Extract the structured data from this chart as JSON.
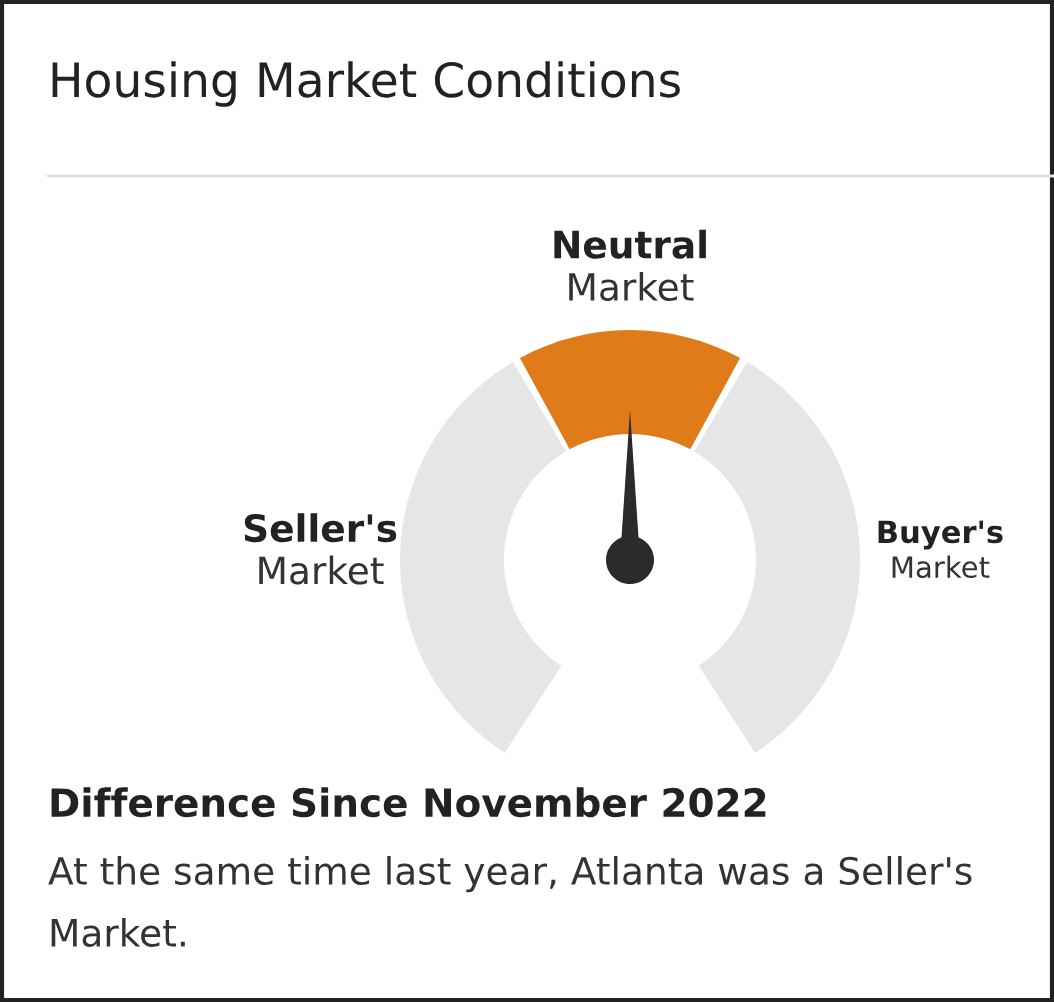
{
  "chart_data": {
    "type": "donut",
    "title": "Housing Market Conditions",
    "categories": [
      "Seller's Market",
      "Neutral Market",
      "Buyer's Market"
    ],
    "values": [
      40,
      20,
      40
    ],
    "colors": [
      "#e6e6e6",
      "#e07b1a",
      "#e6e6e6"
    ],
    "needle": "Neutral Market",
    "annotations": [
      "Difference Since November 2022",
      "At the same time last year, Atlanta was a Seller's Market."
    ]
  }
}
